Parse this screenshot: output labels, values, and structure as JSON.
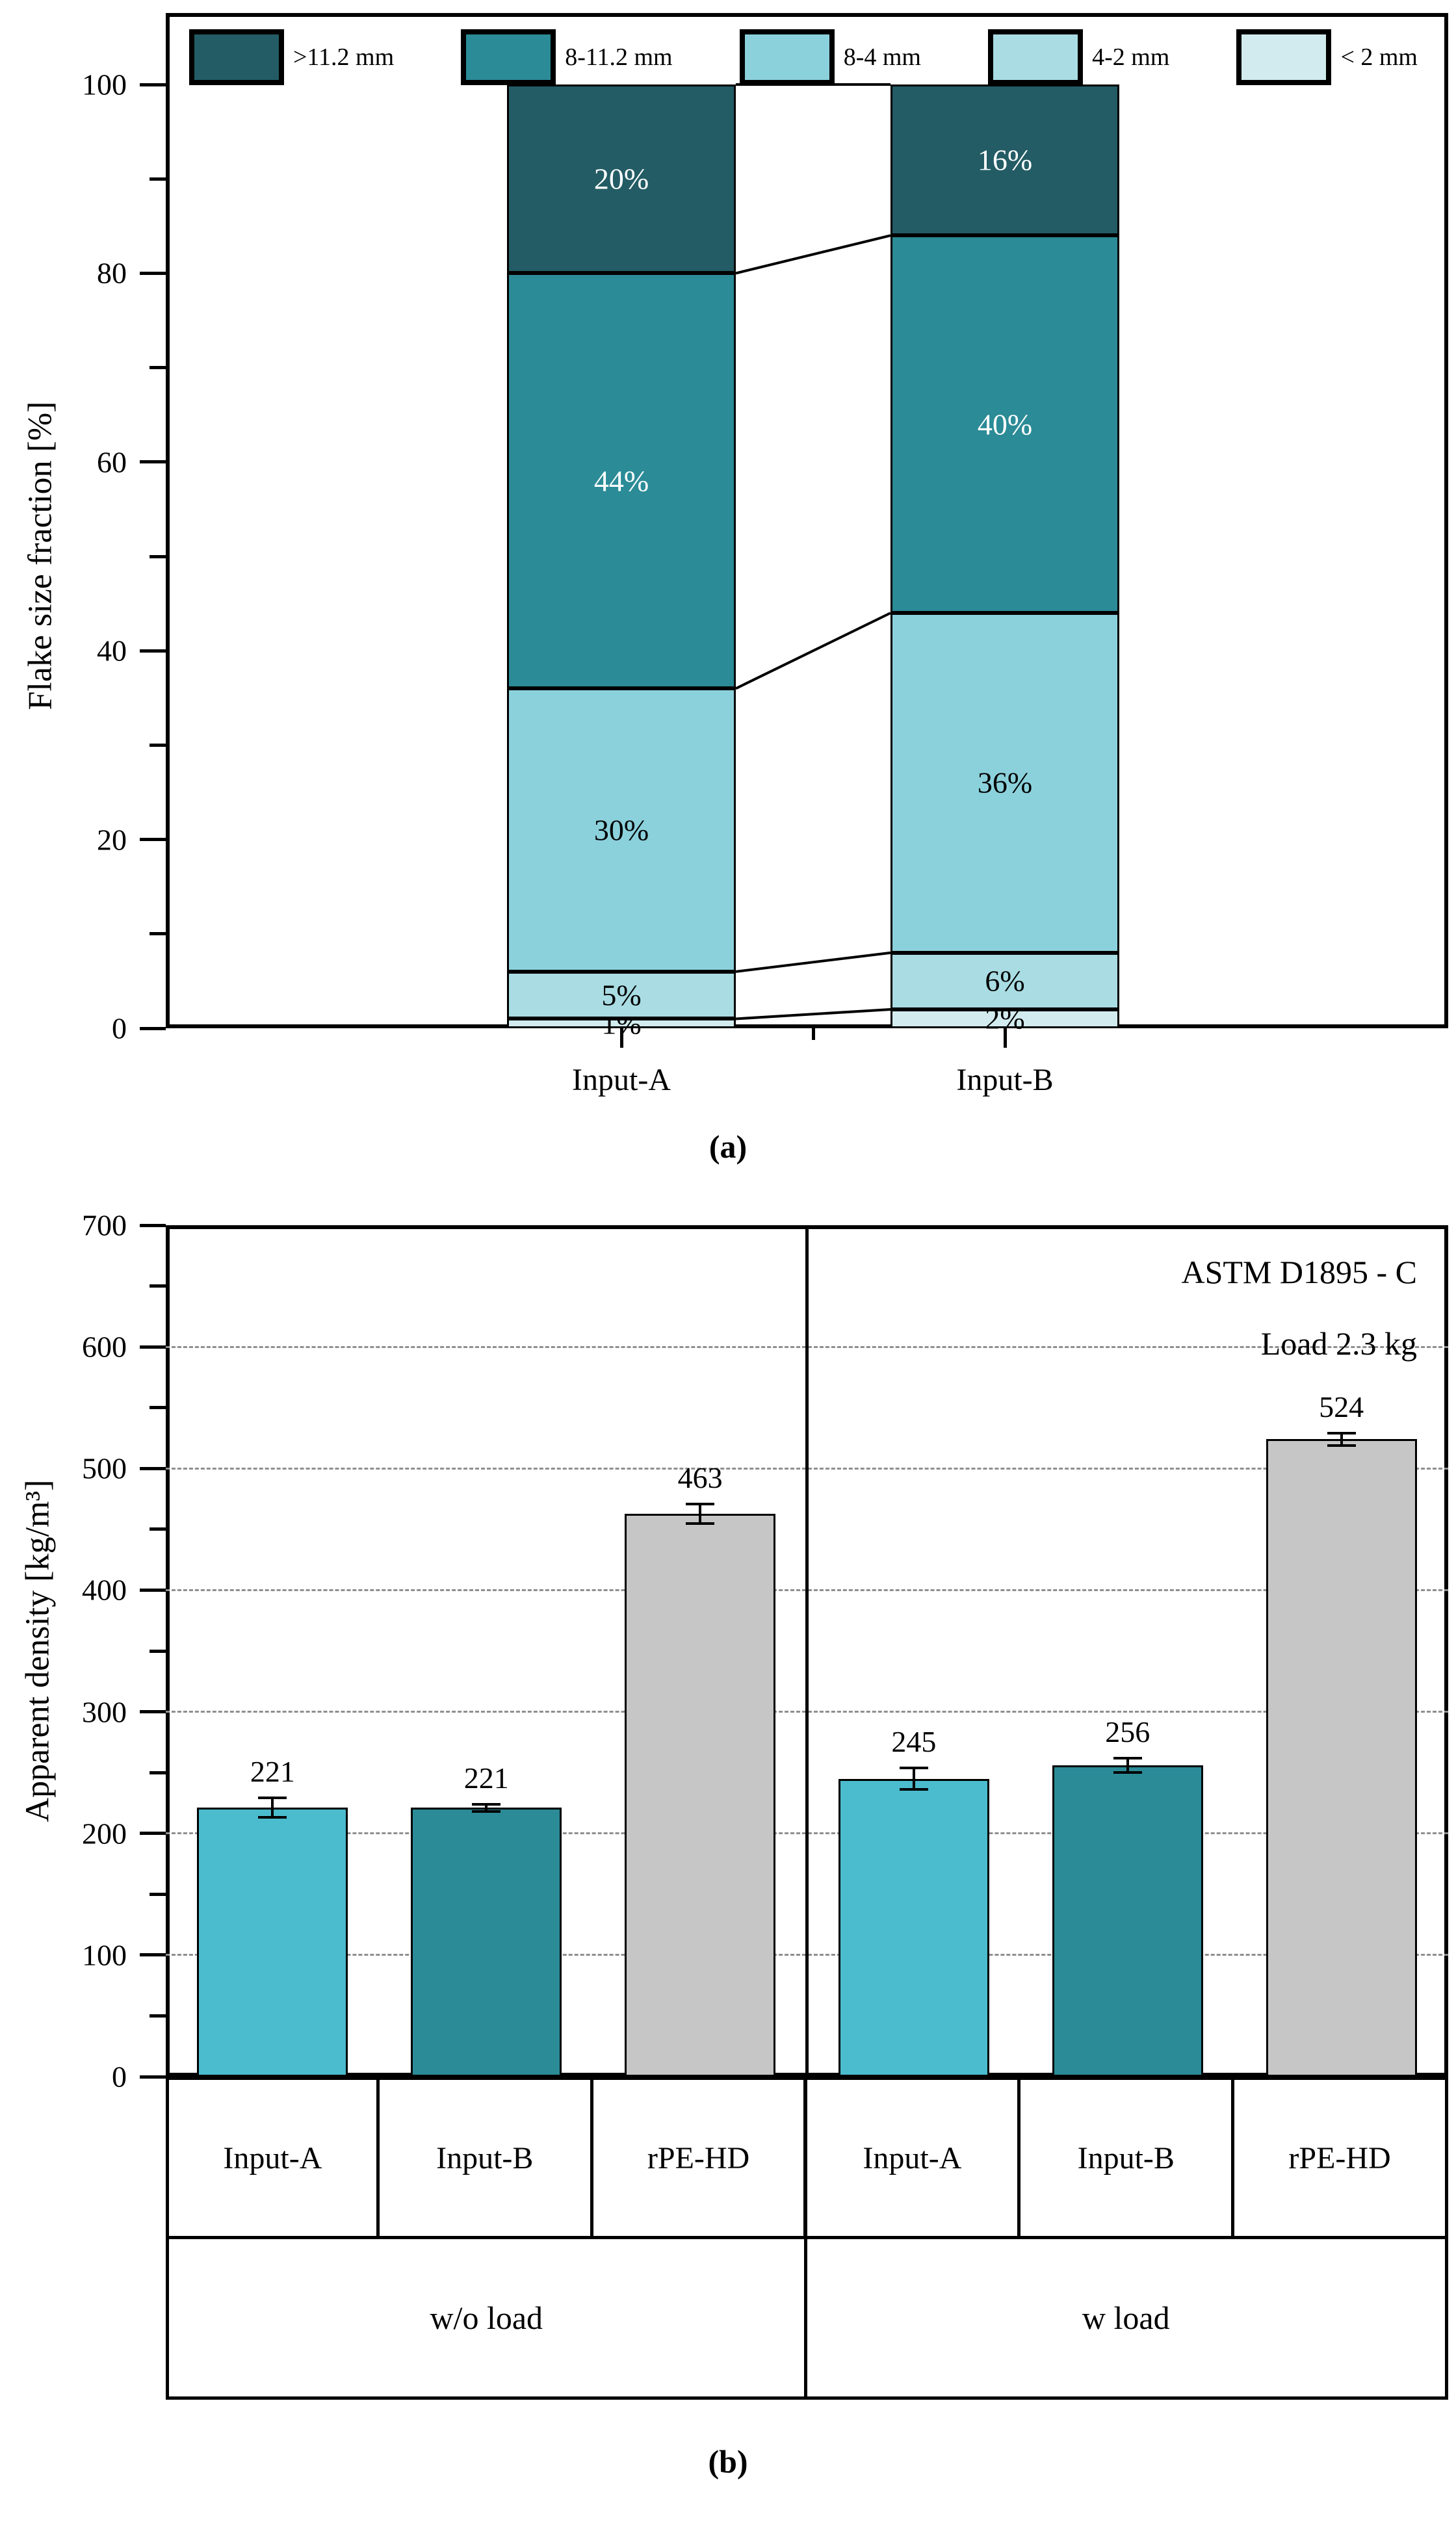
{
  "figure": {
    "caption_a": "(a)",
    "caption_b": "(b)"
  },
  "colors": {
    "teal_darkest": "#235c65",
    "teal": "#2b8b97",
    "blue_light": "#8bd1dc",
    "blue_lighter": "#a9dce3",
    "blue_lightest": "#d2ebee",
    "cyan": "#4bbccd",
    "gray_bar": "#c6c6c7",
    "gridline_gray": "#8f8f8f",
    "segment_label_light": "#ffffff",
    "segment_label_dark": "#000000"
  },
  "chart_data": [
    {
      "type": "stacked-bar",
      "title": "",
      "ylabel": "Flake size fraction [%]",
      "ylim": [
        0,
        100
      ],
      "yticks_major": [
        0,
        20,
        40,
        60,
        80,
        100
      ],
      "yticks_minor": [
        10,
        30,
        50,
        70,
        90
      ],
      "grid": false,
      "legend_position": "top-inside-row",
      "categories": [
        "Input-A",
        "Input-B"
      ],
      "legend": [
        {
          "label": ">11.2 mm",
          "color": "#235c65"
        },
        {
          "label": "8-11.2 mm",
          "color": "#2b8b97"
        },
        {
          "label": "8-4 mm",
          "color": "#8bd1dc"
        },
        {
          "label": "4-2 mm",
          "color": "#a9dce3"
        },
        {
          "label": "< 2 mm",
          "color": "#d2ebee"
        }
      ],
      "series": [
        {
          "name": "< 2 mm",
          "values": [
            1,
            2
          ],
          "labels": [
            "1%",
            "2%"
          ],
          "color": "#d2ebee",
          "label_color": "#000000"
        },
        {
          "name": "4-2 mm",
          "values": [
            5,
            6
          ],
          "labels": [
            "5%",
            "6%"
          ],
          "color": "#a9dce3",
          "label_color": "#000000"
        },
        {
          "name": "8-4 mm",
          "values": [
            30,
            36
          ],
          "labels": [
            "30%",
            "36%"
          ],
          "color": "#8bd1dc",
          "label_color": "#000000"
        },
        {
          "name": "8-11.2 mm",
          "values": [
            44,
            40
          ],
          "labels": [
            "44%",
            "40%"
          ],
          "color": "#2b8b97",
          "label_color": "#ffffff"
        },
        {
          "name": ">11.2 mm",
          "values": [
            20,
            16
          ],
          "labels": [
            "20%",
            "16%"
          ],
          "color": "#235c65",
          "label_color": "#ffffff"
        }
      ],
      "connectors": true,
      "caption": "(a)"
    },
    {
      "type": "bar",
      "title": "",
      "ylabel": "Apparent density [kg/m³]",
      "ylim": [
        0,
        700
      ],
      "yticks_major": [
        0,
        100,
        200,
        300,
        400,
        500,
        600,
        700
      ],
      "yticks_minor": [
        50,
        150,
        250,
        350,
        450,
        550,
        650
      ],
      "gridlines_dashed": [
        100,
        200,
        300,
        400,
        500,
        600
      ],
      "annotation": [
        "ASTM D1895 - C",
        "Load 2.3 kg"
      ],
      "groups": [
        {
          "label": "w/o load",
          "bars": [
            {
              "category": "Input-A",
              "value": 221,
              "err": 8,
              "color": "#4bbccd"
            },
            {
              "category": "Input-B",
              "value": 221,
              "err": 3,
              "color": "#2b8b97"
            },
            {
              "category": "rPE-HD",
              "value": 463,
              "err": 8,
              "color": "#c6c6c7"
            }
          ]
        },
        {
          "label": "w load",
          "bars": [
            {
              "category": "Input-A",
              "value": 245,
              "err": 9,
              "color": "#4bbccd"
            },
            {
              "category": "Input-B",
              "value": 256,
              "err": 6,
              "color": "#2b8b97"
            },
            {
              "category": "rPE-HD",
              "value": 524,
              "err": 5,
              "color": "#c6c6c7"
            }
          ]
        }
      ],
      "caption": "(b)"
    }
  ]
}
